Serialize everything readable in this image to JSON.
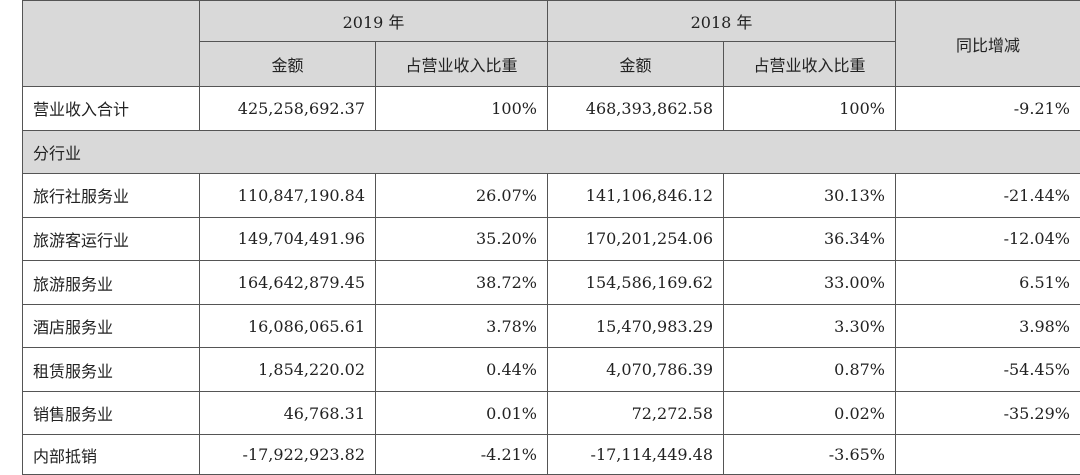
{
  "header": {
    "year_2019": "2019 年",
    "year_2018": "2018 年",
    "yoy": "同比增减",
    "amount": "金额",
    "ratio": "占营业收入比重"
  },
  "total": {
    "label": "营业收入合计",
    "amount_2019": "425,258,692.37",
    "ratio_2019": "100%",
    "amount_2018": "468,393,862.58",
    "ratio_2018": "100%",
    "yoy": "-9.21%"
  },
  "section_label": "分行业",
  "rows": [
    {
      "label": "旅行社服务业",
      "amount_2019": "110,847,190.84",
      "ratio_2019": "26.07%",
      "amount_2018": "141,106,846.12",
      "ratio_2018": "30.13%",
      "yoy": "-21.44%"
    },
    {
      "label": "旅游客运行业",
      "amount_2019": "149,704,491.96",
      "ratio_2019": "35.20%",
      "amount_2018": "170,201,254.06",
      "ratio_2018": "36.34%",
      "yoy": "-12.04%"
    },
    {
      "label": "旅游服务业",
      "amount_2019": "164,642,879.45",
      "ratio_2019": "38.72%",
      "amount_2018": "154,586,169.62",
      "ratio_2018": "33.00%",
      "yoy": "6.51%"
    },
    {
      "label": "酒店服务业",
      "amount_2019": "16,086,065.61",
      "ratio_2019": "3.78%",
      "amount_2018": "15,470,983.29",
      "ratio_2018": "3.30%",
      "yoy": "3.98%"
    },
    {
      "label": "租赁服务业",
      "amount_2019": "1,854,220.02",
      "ratio_2019": "0.44%",
      "amount_2018": "4,070,786.39",
      "ratio_2018": "0.87%",
      "yoy": "-54.45%"
    },
    {
      "label": "销售服务业",
      "amount_2019": "46,768.31",
      "ratio_2019": "0.01%",
      "amount_2018": "72,272.58",
      "ratio_2018": "0.02%",
      "yoy": "-35.29%"
    },
    {
      "label": "内部抵销",
      "amount_2019": "-17,922,923.82",
      "ratio_2019": "-4.21%",
      "amount_2018": "-17,114,449.48",
      "ratio_2018": "-3.65%",
      "yoy": ""
    }
  ]
}
